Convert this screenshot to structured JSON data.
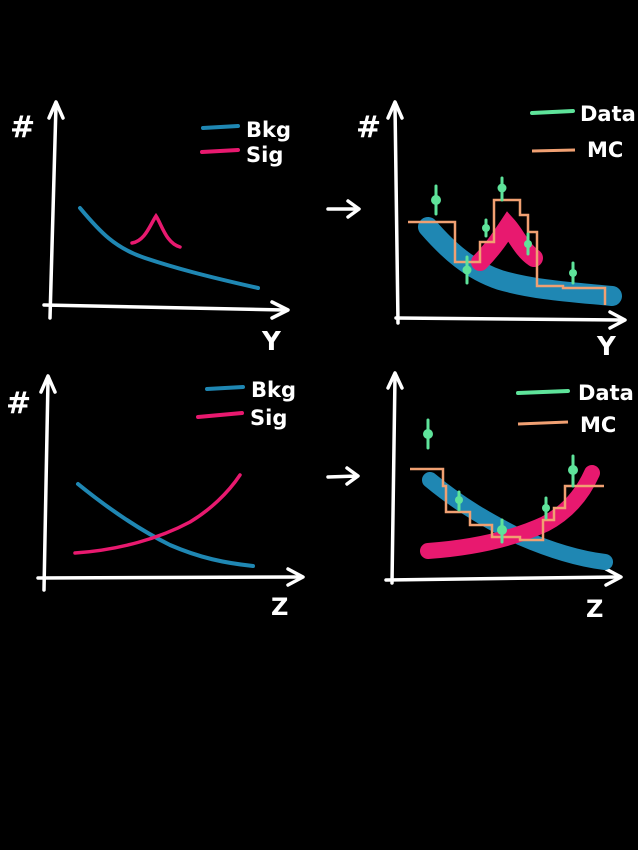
{
  "colors": {
    "background": "#000000",
    "ink": "#ffffff",
    "bkg": "#1f87b3",
    "sig": "#e8196f",
    "data": "#5ee39a",
    "mc": "#f0a072"
  },
  "arrow_glyph": "→",
  "panels": [
    {
      "id": "top-left",
      "y_label": "#",
      "x_label": "Y",
      "legend": [
        {
          "key": "bkg",
          "label": "Bkg"
        },
        {
          "key": "sig",
          "label": "Sig"
        }
      ]
    },
    {
      "id": "top-right",
      "y_label": "#",
      "x_label": "Y",
      "legend": [
        {
          "key": "data",
          "label": "Data"
        },
        {
          "key": "mc",
          "label": "MC"
        }
      ]
    },
    {
      "id": "bottom-left",
      "y_label": "#",
      "x_label": "Z",
      "legend": [
        {
          "key": "bkg",
          "label": "Bkg"
        },
        {
          "key": "sig",
          "label": "Sig"
        }
      ]
    },
    {
      "id": "bottom-right",
      "y_label": "",
      "x_label": "Z",
      "legend": [
        {
          "key": "data",
          "label": "Data"
        },
        {
          "key": "mc",
          "label": "MC"
        }
      ]
    }
  ]
}
